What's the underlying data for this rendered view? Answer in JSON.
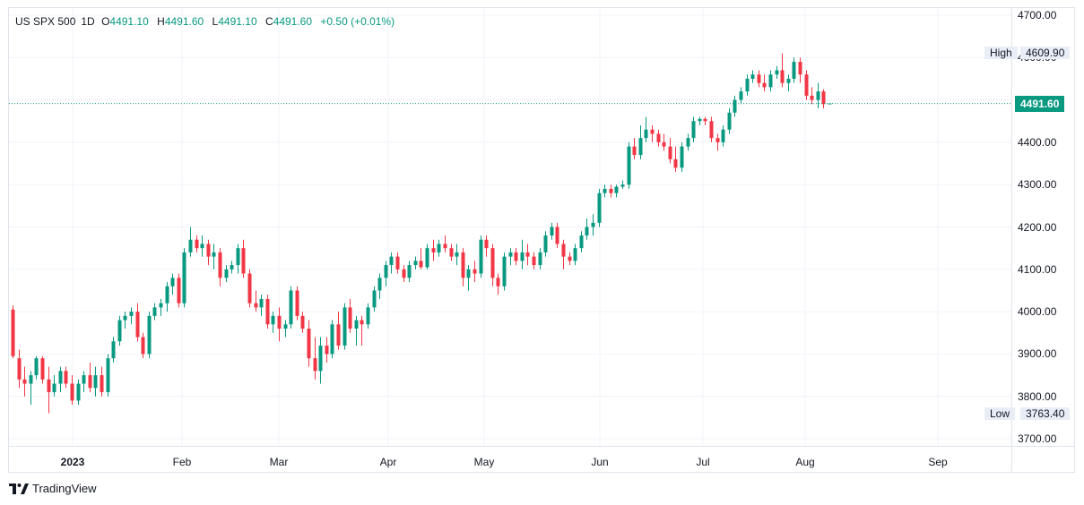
{
  "legend": {
    "symbol": "US SPX 500",
    "interval": "1D",
    "open_key": "O",
    "open": "4491.10",
    "high_key": "H",
    "high": "4491.60",
    "low_key": "L",
    "low": "4491.10",
    "close_key": "C",
    "close": "4491.60",
    "change": "+0.50 (+0.01%)"
  },
  "markers": {
    "high_label": "High",
    "high_value": "4609.90",
    "low_label": "Low",
    "low_value": "3763.40",
    "last_value": "4491.60"
  },
  "branding": {
    "name": "TradingView"
  },
  "colors": {
    "up": "#089981",
    "down": "#f23645",
    "grid": "#f0f3fa",
    "last_line": "#089981"
  },
  "chart_data": {
    "type": "candlestick",
    "y_axis": {
      "min": 3680,
      "max": 4710,
      "ticks": [
        "3700.00",
        "3800.00",
        "3900.00",
        "4000.00",
        "4100.00",
        "4200.00",
        "4300.00",
        "4400.00",
        "4500.00",
        "4600.00",
        "4700.00"
      ]
    },
    "x_axis": {
      "labels": [
        "2023",
        "Feb",
        "Mar",
        "Apr",
        "May",
        "Jun",
        "Jul",
        "Aug",
        "Sep"
      ]
    },
    "grid": true,
    "candles": [
      [
        4005,
        4015,
        3890,
        3895
      ],
      [
        3890,
        3910,
        3820,
        3840
      ],
      [
        3840,
        3870,
        3800,
        3830
      ],
      [
        3830,
        3860,
        3780,
        3850
      ],
      [
        3850,
        3895,
        3840,
        3890
      ],
      [
        3890,
        3895,
        3830,
        3840
      ],
      [
        3840,
        3870,
        3760,
        3810
      ],
      [
        3810,
        3850,
        3800,
        3830
      ],
      [
        3830,
        3870,
        3810,
        3860
      ],
      [
        3860,
        3870,
        3820,
        3830
      ],
      [
        3830,
        3850,
        3780,
        3790
      ],
      [
        3790,
        3840,
        3780,
        3830
      ],
      [
        3830,
        3860,
        3810,
        3850
      ],
      [
        3850,
        3880,
        3810,
        3820
      ],
      [
        3820,
        3870,
        3800,
        3850
      ],
      [
        3850,
        3870,
        3800,
        3810
      ],
      [
        3810,
        3900,
        3800,
        3890
      ],
      [
        3890,
        3940,
        3880,
        3930
      ],
      [
        3930,
        3990,
        3920,
        3980
      ],
      [
        3980,
        4000,
        3960,
        3990
      ],
      [
        3990,
        4010,
        3970,
        4000
      ],
      [
        4000,
        4020,
        3930,
        3940
      ],
      [
        3940,
        3950,
        3890,
        3900
      ],
      [
        3900,
        4000,
        3890,
        3990
      ],
      [
        3990,
        4020,
        3980,
        4010
      ],
      [
        4010,
        4030,
        3990,
        4020
      ],
      [
        4020,
        4070,
        4000,
        4060
      ],
      [
        4060,
        4090,
        4040,
        4080
      ],
      [
        4080,
        4090,
        4010,
        4020
      ],
      [
        4020,
        4150,
        4010,
        4140
      ],
      [
        4140,
        4200,
        4130,
        4170
      ],
      [
        4170,
        4180,
        4140,
        4150
      ],
      [
        4150,
        4180,
        4130,
        4160
      ],
      [
        4160,
        4170,
        4110,
        4130
      ],
      [
        4130,
        4160,
        4100,
        4140
      ],
      [
        4140,
        4150,
        4060,
        4080
      ],
      [
        4080,
        4110,
        4070,
        4100
      ],
      [
        4100,
        4120,
        4090,
        4110
      ],
      [
        4110,
        4160,
        4090,
        4150
      ],
      [
        4150,
        4170,
        4080,
        4090
      ],
      [
        4090,
        4100,
        4010,
        4020
      ],
      [
        4020,
        4050,
        4000,
        4010
      ],
      [
        4010,
        4040,
        3990,
        4030
      ],
      [
        4030,
        4040,
        3960,
        3970
      ],
      [
        3970,
        4000,
        3950,
        3990
      ],
      [
        3990,
        4010,
        3930,
        3960
      ],
      [
        3960,
        3980,
        3940,
        3970
      ],
      [
        3970,
        4060,
        3960,
        4050
      ],
      [
        4050,
        4060,
        3980,
        3990
      ],
      [
        3990,
        4000,
        3950,
        3960
      ],
      [
        3960,
        3980,
        3870,
        3890
      ],
      [
        3890,
        3940,
        3840,
        3860
      ],
      [
        3860,
        3940,
        3830,
        3920
      ],
      [
        3920,
        3940,
        3880,
        3900
      ],
      [
        3900,
        3980,
        3890,
        3970
      ],
      [
        3970,
        4000,
        3910,
        3920
      ],
      [
        3920,
        4020,
        3910,
        4010
      ],
      [
        4010,
        4030,
        3950,
        3960
      ],
      [
        3960,
        3990,
        3920,
        3980
      ],
      [
        3980,
        3990,
        3920,
        3970
      ],
      [
        3970,
        4020,
        3960,
        4010
      ],
      [
        4010,
        4060,
        4000,
        4050
      ],
      [
        4050,
        4090,
        4030,
        4080
      ],
      [
        4080,
        4120,
        4060,
        4110
      ],
      [
        4110,
        4140,
        4090,
        4130
      ],
      [
        4130,
        4140,
        4090,
        4100
      ],
      [
        4100,
        4110,
        4070,
        4080
      ],
      [
        4080,
        4120,
        4070,
        4110
      ],
      [
        4110,
        4130,
        4100,
        4120
      ],
      [
        4120,
        4150,
        4100,
        4105
      ],
      [
        4105,
        4160,
        4100,
        4150
      ],
      [
        4150,
        4170,
        4120,
        4140
      ],
      [
        4140,
        4170,
        4130,
        4160
      ],
      [
        4160,
        4180,
        4140,
        4150
      ],
      [
        4150,
        4160,
        4120,
        4130
      ],
      [
        4130,
        4160,
        4110,
        4140
      ],
      [
        4140,
        4150,
        4060,
        4080
      ],
      [
        4080,
        4110,
        4050,
        4100
      ],
      [
        4100,
        4120,
        4070,
        4090
      ],
      [
        4090,
        4180,
        4080,
        4170
      ],
      [
        4170,
        4180,
        4130,
        4150
      ],
      [
        4150,
        4160,
        4060,
        4080
      ],
      [
        4080,
        4090,
        4040,
        4060
      ],
      [
        4060,
        4140,
        4050,
        4130
      ],
      [
        4130,
        4150,
        4110,
        4140
      ],
      [
        4140,
        4150,
        4110,
        4120
      ],
      [
        4120,
        4170,
        4100,
        4140
      ],
      [
        4140,
        4160,
        4110,
        4130
      ],
      [
        4130,
        4140,
        4100,
        4110
      ],
      [
        4110,
        4150,
        4100,
        4140
      ],
      [
        4140,
        4190,
        4130,
        4180
      ],
      [
        4180,
        4210,
        4170,
        4200
      ],
      [
        4200,
        4210,
        4150,
        4160
      ],
      [
        4160,
        4170,
        4100,
        4130
      ],
      [
        4130,
        4140,
        4110,
        4120
      ],
      [
        4120,
        4160,
        4110,
        4150
      ],
      [
        4150,
        4190,
        4140,
        4180
      ],
      [
        4180,
        4220,
        4170,
        4200
      ],
      [
        4200,
        4230,
        4180,
        4210
      ],
      [
        4210,
        4290,
        4200,
        4280
      ],
      [
        4280,
        4300,
        4270,
        4290
      ],
      [
        4290,
        4300,
        4270,
        4280
      ],
      [
        4280,
        4300,
        4270,
        4295
      ],
      [
        4295,
        4310,
        4290,
        4300
      ],
      [
        4300,
        4400,
        4290,
        4390
      ],
      [
        4390,
        4410,
        4360,
        4370
      ],
      [
        4370,
        4440,
        4360,
        4410
      ],
      [
        4410,
        4460,
        4400,
        4430
      ],
      [
        4430,
        4440,
        4400,
        4420
      ],
      [
        4420,
        4430,
        4390,
        4400
      ],
      [
        4400,
        4420,
        4380,
        4390
      ],
      [
        4390,
        4410,
        4350,
        4360
      ],
      [
        4360,
        4390,
        4330,
        4340
      ],
      [
        4340,
        4400,
        4330,
        4390
      ],
      [
        4390,
        4420,
        4380,
        4410
      ],
      [
        4410,
        4460,
        4400,
        4450
      ],
      [
        4450,
        4460,
        4440,
        4455
      ],
      [
        4455,
        4460,
        4440,
        4450
      ],
      [
        4450,
        4460,
        4400,
        4410
      ],
      [
        4410,
        4420,
        4380,
        4400
      ],
      [
        4400,
        4440,
        4390,
        4430
      ],
      [
        4430,
        4480,
        4420,
        4470
      ],
      [
        4470,
        4510,
        4460,
        4500
      ],
      [
        4500,
        4530,
        4490,
        4520
      ],
      [
        4520,
        4560,
        4510,
        4550
      ],
      [
        4550,
        4570,
        4540,
        4560
      ],
      [
        4560,
        4570,
        4530,
        4540
      ],
      [
        4540,
        4560,
        4520,
        4530
      ],
      [
        4530,
        4570,
        4520,
        4560
      ],
      [
        4560,
        4580,
        4550,
        4570
      ],
      [
        4570,
        4610,
        4530,
        4540
      ],
      [
        4540,
        4560,
        4520,
        4550
      ],
      [
        4550,
        4600,
        4540,
        4590
      ],
      [
        4590,
        4600,
        4540,
        4560
      ],
      [
        4560,
        4570,
        4500,
        4510
      ],
      [
        4510,
        4530,
        4490,
        4500
      ],
      [
        4500,
        4540,
        4480,
        4520
      ],
      [
        4520,
        4525,
        4480,
        4490
      ],
      [
        4491.1,
        4491.6,
        4491.1,
        4491.6
      ]
    ]
  }
}
